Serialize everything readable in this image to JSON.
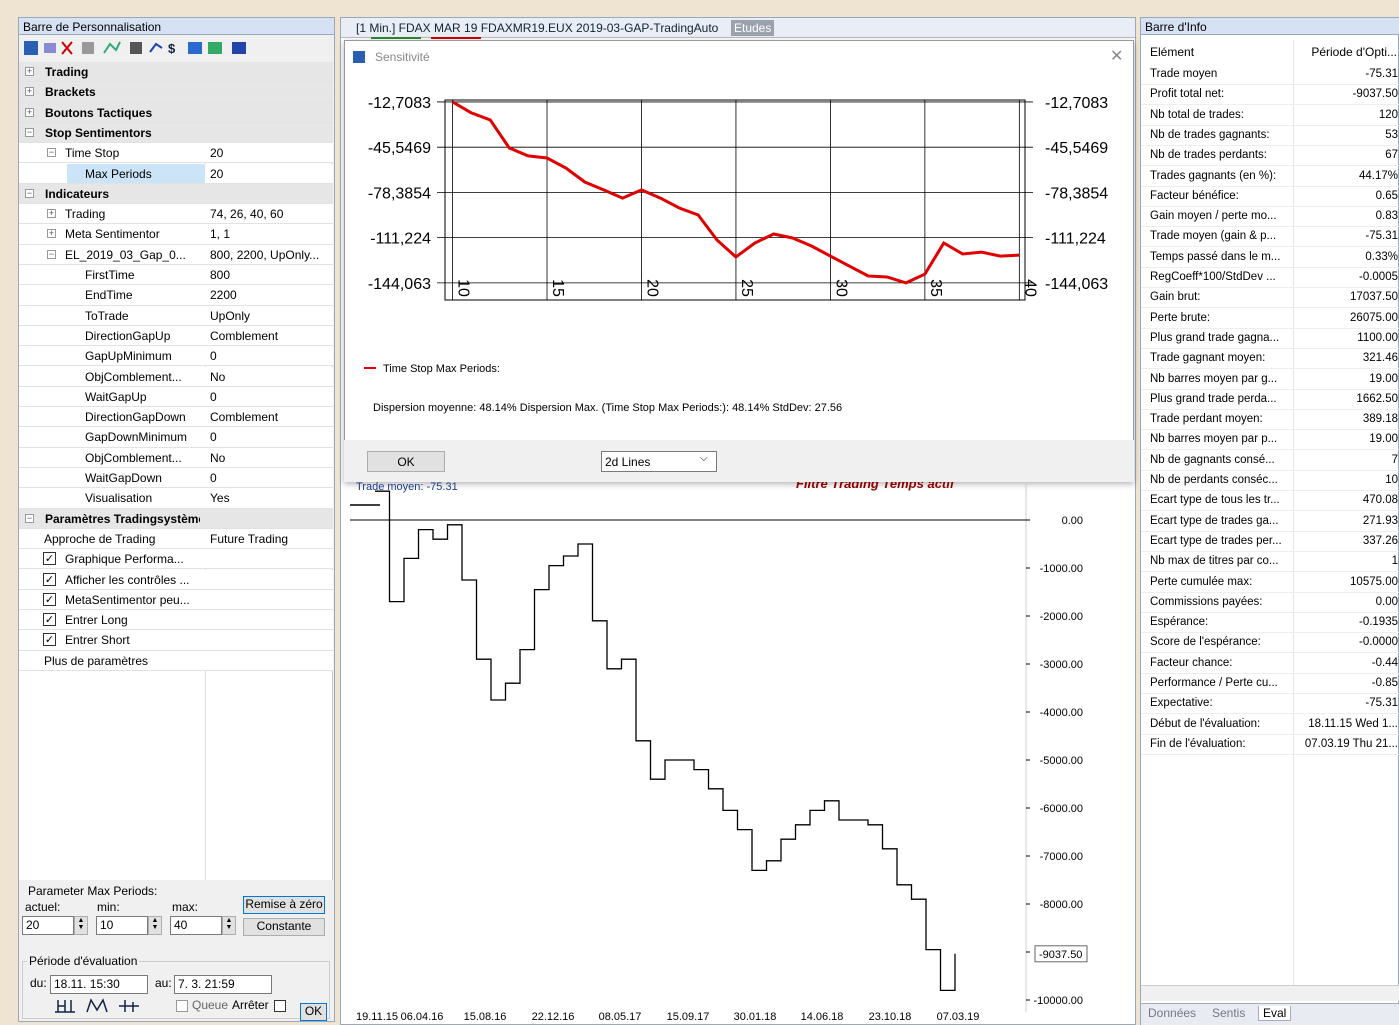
{
  "left_panel": {
    "title": "Barre de Personnalisation",
    "tree": [
      {
        "label": "Trading",
        "expanded": false
      },
      {
        "label": "Brackets",
        "expanded": false
      },
      {
        "label": "Boutons Tactiques",
        "expanded": false
      },
      {
        "label": "Stop Sentimentors",
        "expanded": true,
        "children": [
          {
            "label": "Time Stop",
            "value": "20",
            "expanded": true,
            "children": [
              {
                "label": "Max Periods",
                "value": "20",
                "selected": true
              }
            ]
          }
        ]
      },
      {
        "label": "Indicateurs",
        "expanded": true,
        "children": [
          {
            "label": "Trading",
            "value": "74, 26, 40, 60",
            "expanded": false
          },
          {
            "label": "Meta Sentimentor",
            "value": "1, 1",
            "expanded": false
          },
          {
            "label": "EL_2019_03_Gap_0...",
            "value": "800, 2200, UpOnly...",
            "expanded": true,
            "children": [
              {
                "label": "FirstTime",
                "value": "800"
              },
              {
                "label": "EndTime",
                "value": "2200"
              },
              {
                "label": "ToTrade",
                "value": "UpOnly"
              },
              {
                "label": "DirectionGapUp",
                "value": "Comblement"
              },
              {
                "label": "GapUpMinimum",
                "value": "0"
              },
              {
                "label": "ObjComblement...",
                "value": "No"
              },
              {
                "label": "WaitGapUp",
                "value": "0"
              },
              {
                "label": "DirectionGapDown",
                "value": "Comblement"
              },
              {
                "label": "GapDownMinimum",
                "value": "0"
              },
              {
                "label": "ObjComblement...",
                "value": "No"
              },
              {
                "label": "WaitGapDown",
                "value": "0"
              },
              {
                "label": "Visualisation",
                "value": "Yes"
              }
            ]
          }
        ]
      },
      {
        "label": "Paramètres Tradingsystème",
        "expanded": true,
        "children": [
          {
            "label": "Approche de Trading",
            "value": "Future Trading"
          },
          {
            "label": "Graphique Performa...",
            "checked": true
          },
          {
            "label": "Afficher les contrôles ...",
            "checked": true
          },
          {
            "label": "MetaSentimentor peu...",
            "checked": true
          },
          {
            "label": "Entrer Long",
            "checked": true
          },
          {
            "label": "Entrer Short",
            "checked": true
          },
          {
            "label": "Plus de paramètres"
          }
        ]
      }
    ],
    "parameter": {
      "title": "Parameter Max Periods:",
      "current_label": "actuel:",
      "min_label": "min:",
      "max_label": "max:",
      "current": "20",
      "min": "10",
      "max": "40",
      "reset_button": "Remise à zéro",
      "constant_button": "Constante"
    },
    "evaluation": {
      "title": "Période d'évaluation",
      "from_label": "du:",
      "from": "18.11. 15:30",
      "to_label": "au:",
      "to": "7. 3. 21:59",
      "queue": "Queue",
      "stop": "Arrêter",
      "ok": "OK"
    }
  },
  "chart_window": {
    "title": "[1 Min.] FDAX MAR 19  FDAXMR19.EUX 2019-03-GAP-TradingAuto",
    "studies_button": "Etudes",
    "sensitivity": {
      "title": "Sensitivité",
      "chart_data": {
        "type": "line",
        "x": [
          10,
          11,
          12,
          13,
          14,
          15,
          16,
          17,
          18,
          19,
          20,
          21,
          22,
          23,
          24,
          25,
          26,
          27,
          28,
          29,
          30,
          31,
          32,
          33,
          34,
          35,
          36,
          37,
          38,
          39,
          40
        ],
        "series": [
          {
            "name": "Time Stop Max Periods:",
            "color": "#e00000",
            "values": [
              -12.71,
              -20.7,
              -25.8,
              -46.1,
              -51.9,
              -53.4,
              -60.7,
              -70.8,
              -76.6,
              -82.5,
              -76.6,
              -82.5,
              -89.7,
              -94.8,
              -113.0,
              -125.3,
              -115.1,
              -108.6,
              -111.5,
              -117.3,
              -124.6,
              -131.9,
              -139.1,
              -139.8,
              -144.1,
              -137.7,
              -115.1,
              -123.1,
              -121.7,
              -124.6,
              -123.9
            ]
          }
        ],
        "xlim": [
          9.6,
          40.3
        ],
        "xticks": [
          10,
          15,
          20,
          25,
          30,
          35,
          40
        ],
        "ylim": [
          -156.5,
          -11.3
        ],
        "yticks": [
          {
            "value": -12.7083,
            "label": "-12,7083"
          },
          {
            "value": -45.5469,
            "label": "-45,5469"
          },
          {
            "value": -78.3854,
            "label": "-78,3854"
          },
          {
            "value": -111.224,
            "label": "-111,224"
          },
          {
            "value": -144.063,
            "label": "-144,063"
          }
        ],
        "grid": true
      },
      "summary": "Dispersion moyenne: 48.14%  Dispersion Max. (Time Stop Max Periods:): 48.14%  StdDev: 27.56",
      "ok": "OK",
      "view": "2d Lines"
    },
    "equity": {
      "chart_data": {
        "type": "line",
        "color": "#000000",
        "annotations": [
          "Trade moyen: -75.31",
          "Filtre Trading Temps actif"
        ],
        "last_value_label": "-9037.50",
        "values": [
          600,
          -1700,
          -800,
          -200,
          -400,
          -100,
          -1250,
          -2900,
          -3750,
          -3400,
          -2700,
          -1450,
          -950,
          -750,
          -500,
          -2100,
          -3100,
          -2900,
          -4600,
          -5400,
          -5000,
          -5000,
          -5200,
          -5600,
          -6050,
          -6450,
          -7300,
          -7100,
          -6650,
          -6350,
          -6050,
          -5850,
          -6250,
          -6250,
          -6350,
          -6850,
          -7600,
          -7900,
          -8950,
          -9800,
          -9037.5
        ],
        "x_labels": [
          "19.11.15",
          "06.04.16",
          "15.08.16",
          "22.12.16",
          "08.05.17",
          "15.09.17",
          "30.01.18",
          "14.06.18",
          "23.10.18",
          "07.03.19"
        ],
        "ylim": [
          -10100,
          625
        ],
        "yticks": [
          {
            "value": 0,
            "label": "0.00"
          },
          {
            "value": -1000,
            "label": "-1000.00"
          },
          {
            "value": -2000,
            "label": "-2000.00"
          },
          {
            "value": -3000,
            "label": "-3000.00"
          },
          {
            "value": -4000,
            "label": "-4000.00"
          },
          {
            "value": -5000,
            "label": "-5000.00"
          },
          {
            "value": -6000,
            "label": "-6000.00"
          },
          {
            "value": -7000,
            "label": "-7000.00"
          },
          {
            "value": -8000,
            "label": "-8000.00"
          },
          {
            "value": -9000,
            "label": "-9000.00"
          },
          {
            "value": -10000,
            "label": "-10000.00"
          }
        ]
      }
    }
  },
  "info_panel": {
    "title": "Barre d'Info",
    "header": [
      "Elément",
      "Période d'Opti..."
    ],
    "rows": [
      {
        "label": "Trade moyen",
        "value": "-75.31"
      },
      {
        "label": "Profit total net:",
        "value": "-9037.50"
      },
      {
        "label": "Nb total de trades:",
        "value": "120"
      },
      {
        "label": "Nb de trades gagnants:",
        "value": "53"
      },
      {
        "label": "Nb de trades perdants:",
        "value": "67"
      },
      {
        "label": "Trades gagnants (en %):",
        "value": "44.17%"
      },
      {
        "label": "Facteur bénéfice:",
        "value": "0.65"
      },
      {
        "label": "Gain moyen / perte mo...",
        "value": "0.83"
      },
      {
        "label": "Trade moyen (gain & p...",
        "value": "-75.31"
      },
      {
        "label": "Temps passé dans le m...",
        "value": "0.33%"
      },
      {
        "label": "RegCoeff*100/StdDev ...",
        "value": "-0.0005"
      },
      {
        "label": "Gain brut:",
        "value": "17037.50"
      },
      {
        "label": "Perte brute:",
        "value": "26075.00"
      },
      {
        "label": "Plus grand trade gagna...",
        "value": "1100.00"
      },
      {
        "label": "Trade gagnant moyen:",
        "value": "321.46"
      },
      {
        "label": "Nb barres moyen par g...",
        "value": "19.00"
      },
      {
        "label": "Plus grand trade perda...",
        "value": "1662.50"
      },
      {
        "label": "Trade perdant moyen:",
        "value": "389.18"
      },
      {
        "label": "Nb barres moyen par p...",
        "value": "19.00"
      },
      {
        "label": "Nb de gagnants consé...",
        "value": "7"
      },
      {
        "label": "Nb de perdants conséc...",
        "value": "10"
      },
      {
        "label": "Ecart type de tous les tr...",
        "value": "470.08"
      },
      {
        "label": "Ecart type de trades ga...",
        "value": "271.93"
      },
      {
        "label": "Ecart type de trades per...",
        "value": "337.26"
      },
      {
        "label": "Nb max de titres par co...",
        "value": "1"
      },
      {
        "label": "Perte cumulée max:",
        "value": "10575.00"
      },
      {
        "label": "Commissions payées:",
        "value": "0.00"
      },
      {
        "label": "Espérance:",
        "value": "-0.1935"
      },
      {
        "label": "Score de l'espérance:",
        "value": "-0.0000"
      },
      {
        "label": "Facteur chance:",
        "value": "-0.44"
      },
      {
        "label": "Performance / Perte cu...",
        "value": "-0.85"
      },
      {
        "label": "Expectative:",
        "value": "-75.31"
      },
      {
        "label": "Début de l'évaluation:",
        "value": "18.11.15 Wed 1..."
      },
      {
        "label": "Fin de l'évaluation:",
        "value": "07.03.19 Thu 21..."
      }
    ],
    "tabs": [
      "Données",
      "Sentis",
      "Eval"
    ]
  }
}
